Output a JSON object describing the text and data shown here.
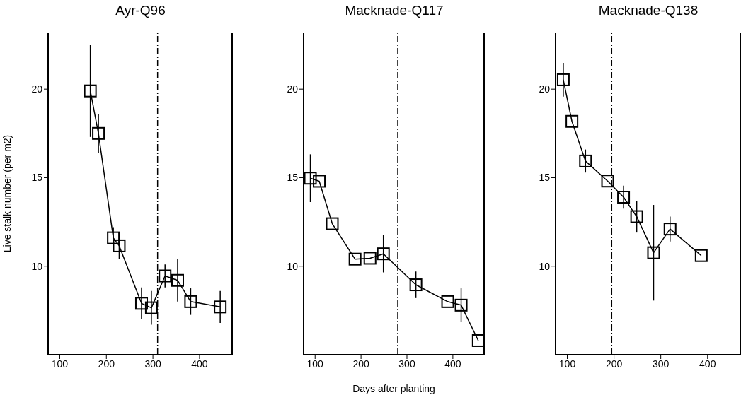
{
  "chart_data": [
    {
      "type": "line",
      "title": "Ayr-Q96",
      "ylabel": "Live stalk number (per m2)",
      "marker": "square",
      "line_style": "solid",
      "xlim": [
        75,
        470
      ],
      "xticks": [
        100,
        200,
        300,
        400
      ],
      "ylim": [
        5,
        23.2
      ],
      "yticks": [
        10,
        15,
        20
      ],
      "x": [
        165.6,
        183,
        215,
        227.6,
        275.5,
        296.7,
        326,
        353,
        381,
        444.4
      ],
      "series": [
        {
          "color": "#000000",
          "values": [
            19.9,
            17.5,
            11.6,
            11.15,
            7.9,
            7.65,
            9.45,
            9.2,
            8.0,
            7.7
          ],
          "errors": [
            2.6,
            1.1,
            0.6,
            0.75,
            0.9,
            0.95,
            0.65,
            1.2,
            0.75,
            0.9
          ]
        }
      ],
      "ref_lines": [
        {
          "axis": "x",
          "value": 310,
          "line_style": "dashdot",
          "color": "#000000"
        }
      ]
    },
    {
      "type": "line",
      "title": "Macknade-Q117",
      "xlabel": "Days after planting",
      "marker": "square",
      "line_style": "solid",
      "xlim": [
        75,
        468
      ],
      "xticks": [
        100,
        200,
        300,
        400
      ],
      "ylim": [
        5,
        23.2
      ],
      "yticks": [
        10,
        15,
        20
      ],
      "x": [
        89.7,
        109,
        137.4,
        187,
        219.5,
        248.7,
        319.5,
        388.7,
        418,
        455.4
      ],
      "series": [
        {
          "color": "#000000",
          "values": [
            14.97,
            14.8,
            12.4,
            10.4,
            10.45,
            10.7,
            8.95,
            8.0,
            7.8,
            5.8
          ],
          "errors": [
            1.35,
            null,
            null,
            null,
            null,
            1.05,
            0.75,
            null,
            0.95,
            null
          ]
        }
      ],
      "ref_lines": [
        {
          "axis": "x",
          "value": 280,
          "line_style": "dashdot",
          "color": "#000000"
        }
      ]
    },
    {
      "type": "line",
      "title": "Macknade-Q138",
      "marker": "square",
      "line_style": "solid",
      "xlim": [
        75,
        470
      ],
      "xticks": [
        100,
        200,
        300,
        400
      ],
      "ylim": [
        5,
        23.2
      ],
      "yticks": [
        10,
        15,
        20
      ],
      "x": [
        91.5,
        110,
        139,
        186.3,
        220.4,
        248.5,
        284.6,
        319.8,
        386.5
      ],
      "series": [
        {
          "color": "#000000",
          "values": [
            20.53,
            18.18,
            15.94,
            14.81,
            13.9,
            12.8,
            10.76,
            12.1,
            10.6
          ],
          "errors": [
            0.95,
            null,
            0.65,
            null,
            0.65,
            0.9,
            2.7,
            0.7,
            null
          ]
        }
      ],
      "ref_lines": [
        {
          "axis": "x",
          "value": 195,
          "line_style": "dashdot",
          "color": "#000000"
        }
      ]
    }
  ]
}
